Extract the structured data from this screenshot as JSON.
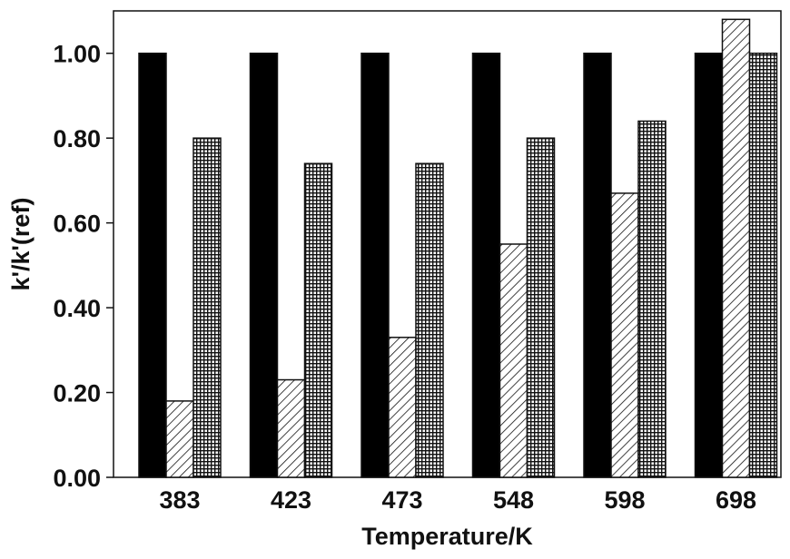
{
  "chart_data": {
    "type": "bar",
    "title": "",
    "xlabel": "Temperature/K",
    "ylabel": "k'/k'(ref)",
    "categories": [
      "383",
      "423",
      "473",
      "548",
      "598",
      "698"
    ],
    "series": [
      {
        "values": [
          1.0,
          1.0,
          1.0,
          1.0,
          1.0,
          1.0
        ],
        "fill": "solid"
      },
      {
        "values": [
          0.18,
          0.23,
          0.33,
          0.55,
          0.67,
          1.08
        ],
        "fill": "hatch"
      },
      {
        "values": [
          0.8,
          0.74,
          0.74,
          0.8,
          0.84,
          1.0
        ],
        "fill": "grid"
      }
    ],
    "yticks": [
      "0.00",
      "0.20",
      "0.40",
      "0.60",
      "0.80",
      "1.00"
    ],
    "ylim": [
      0,
      1.1
    ],
    "grid": false,
    "legend": "none",
    "colors": {
      "solid": "#000000",
      "pattern": "#111111",
      "background": "#ffffff"
    }
  }
}
